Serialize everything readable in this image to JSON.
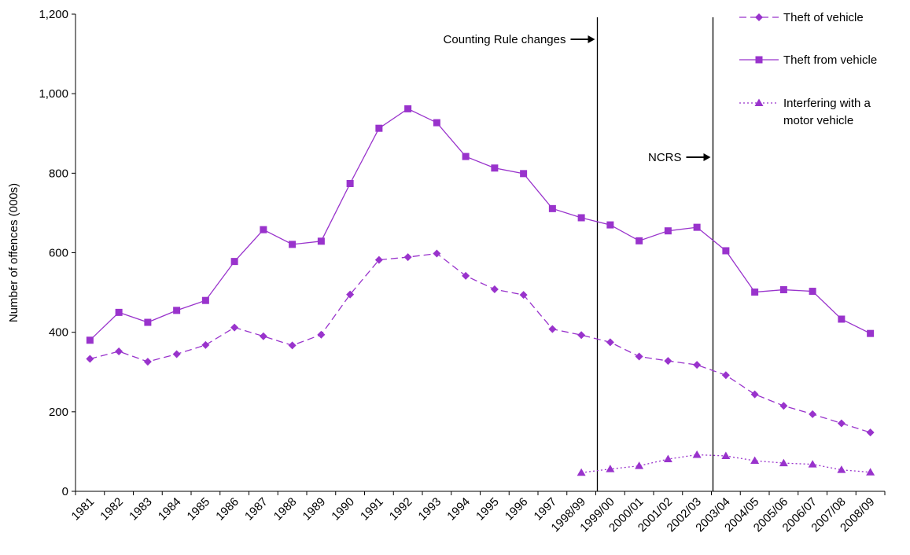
{
  "chart_data": {
    "type": "line",
    "title": "",
    "ylabel": "Number of offences (000s)",
    "xlabel": "",
    "ylim": [
      0,
      1200
    ],
    "y_ticks": [
      0,
      200,
      400,
      600,
      800,
      1000,
      1200
    ],
    "y_tick_labels": [
      "0",
      "200",
      "400",
      "600",
      "800",
      "1,000",
      "1,200"
    ],
    "grid": false,
    "legend_position": "top-right",
    "categories": [
      "1981",
      "1982",
      "1983",
      "1984",
      "1985",
      "1986",
      "1987",
      "1988",
      "1989",
      "1990",
      "1991",
      "1992",
      "1993",
      "1994",
      "1995",
      "1996",
      "1997",
      "1998/99",
      "1999/00",
      "2000/01",
      "2001/02",
      "2002/03",
      "2003/04",
      "2004/05",
      "2005/06",
      "2006/07",
      "2007/08",
      "2008/09"
    ],
    "series": [
      {
        "name": "Theft of vehicle",
        "style": "dashed",
        "marker": "diamond",
        "color": "#9933CC",
        "values": [
          333,
          352,
          326,
          345,
          368,
          412,
          390,
          367,
          394,
          495,
          582,
          589,
          598,
          542,
          508,
          494,
          408,
          393,
          375,
          339,
          328,
          318,
          292,
          244,
          215,
          194,
          171,
          148
        ]
      },
      {
        "name": "Theft from vehicle",
        "style": "solid",
        "marker": "square",
        "color": "#9933CC",
        "values": [
          380,
          450,
          425,
          455,
          480,
          578,
          658,
          621,
          629,
          774,
          913,
          962,
          927,
          842,
          813,
          799,
          711,
          688,
          670,
          630,
          655,
          664,
          605,
          501,
          507,
          503,
          433,
          397
        ]
      },
      {
        "name": "Interfering with a motor vehicle",
        "style": "dotted",
        "marker": "triangle",
        "color": "#9933CC",
        "values": [
          null,
          null,
          null,
          null,
          null,
          null,
          null,
          null,
          null,
          null,
          null,
          null,
          null,
          null,
          null,
          null,
          null,
          47,
          56,
          64,
          81,
          92,
          89,
          77,
          71,
          68,
          54,
          48
        ]
      }
    ],
    "annotations": [
      {
        "label": "Counting Rule changes",
        "between": [
          "1998/99",
          "1999/00"
        ]
      },
      {
        "label": "NCRS",
        "between": [
          "2002/03",
          "2003/04"
        ]
      }
    ]
  }
}
